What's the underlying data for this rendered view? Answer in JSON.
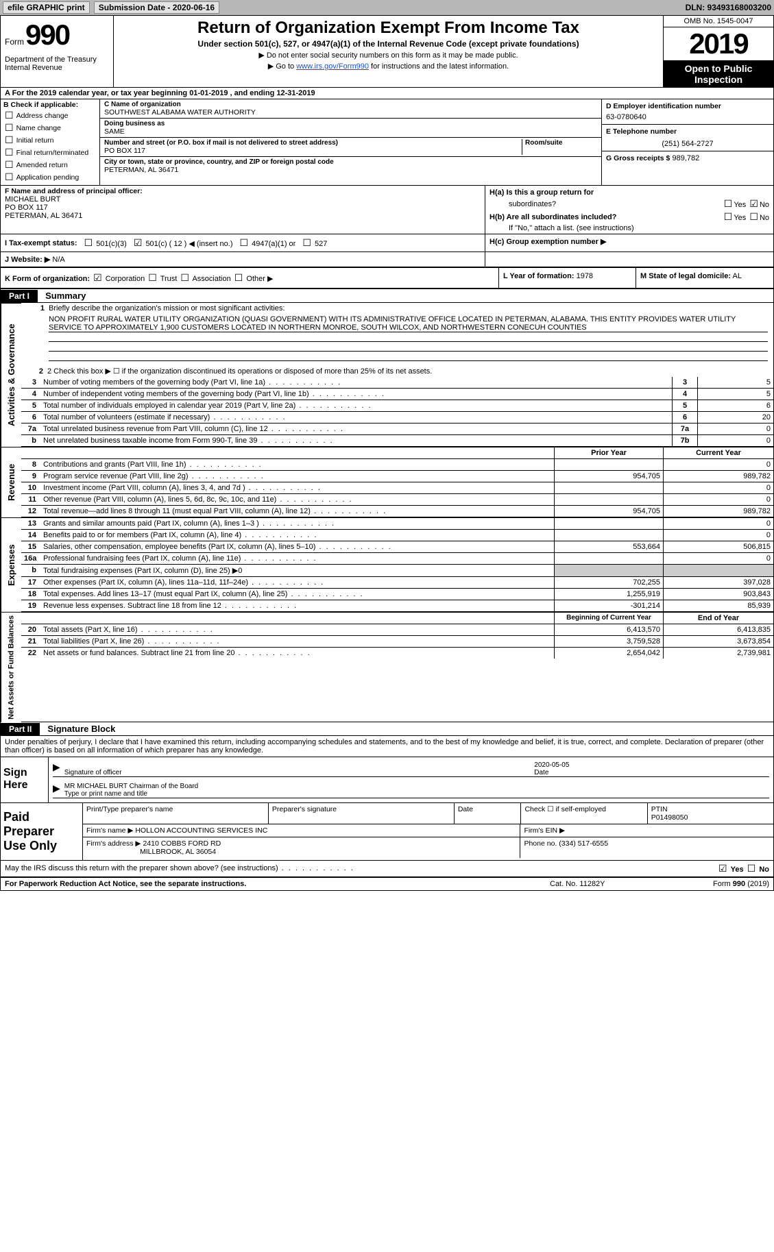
{
  "top": {
    "efile": "efile GRAPHIC print",
    "sub_label": "Submission Date - 2020-06-16",
    "dln": "DLN: 93493168003200"
  },
  "header": {
    "form_label": "Form",
    "form_number": "990",
    "dept": "Department of the Treasury\nInternal Revenue",
    "title": "Return of Organization Exempt From Income Tax",
    "subtitle": "Under section 501(c), 527, or 4947(a)(1) of the Internal Revenue Code (except private foundations)",
    "note1": "Do not enter social security numbers on this form as it may be made public.",
    "note2_pre": "Go to ",
    "note2_link": "www.irs.gov/Form990",
    "note2_post": " for instructions and the latest information.",
    "omb": "OMB No. 1545-0047",
    "year": "2019",
    "open": "Open to Public Inspection"
  },
  "row_a": "A For the 2019 calendar year, or tax year beginning 01-01-2019    , and ending 12-31-2019",
  "box_b": {
    "label": "B Check if applicable:",
    "opts": [
      "Address change",
      "Name change",
      "Initial return",
      "Final return/terminated",
      "Amended return",
      "Application pending"
    ]
  },
  "box_c": {
    "name_label": "C Name of organization",
    "name": "SOUTHWEST ALABAMA WATER AUTHORITY",
    "dba_label": "Doing business as",
    "dba": "SAME",
    "street_label": "Number and street (or P.O. box if mail is not delivered to street address)",
    "room_label": "Room/suite",
    "street": "PO BOX 117",
    "city_label": "City or town, state or province, country, and ZIP or foreign postal code",
    "city": "PETERMAN, AL  36471"
  },
  "box_d": {
    "label": "D Employer identification number",
    "value": "63-0780640"
  },
  "box_e": {
    "label": "E Telephone number",
    "value": "(251) 564-2727"
  },
  "box_g": {
    "label": "G Gross receipts $",
    "value": "989,782"
  },
  "box_f": {
    "label": "F  Name and address of principal officer:",
    "l1": "MICHAEL BURT",
    "l2": "PO BOX 117",
    "l3": "PETERMAN, AL  36471"
  },
  "box_h": {
    "a1": "H(a)  Is this a group return for",
    "a2": "subordinates?",
    "b1": "H(b)  Are all subordinates included?",
    "b2": "If \"No,\" attach a list. (see instructions)",
    "c": "H(c)  Group exemption number ▶",
    "yes": "Yes",
    "no": "No"
  },
  "row_i": {
    "label": "I  Tax-exempt status:",
    "o1": "501(c)(3)",
    "o2": "501(c) ( 12 ) ◀ (insert no.)",
    "o3": "4947(a)(1) or",
    "o4": "527"
  },
  "row_j": {
    "label": "J  Website: ▶",
    "value": "N/A"
  },
  "row_k": {
    "label": "K Form of organization:",
    "opts": [
      "Corporation",
      "Trust",
      "Association",
      "Other ▶"
    ],
    "l_label": "L Year of formation:",
    "l_val": "1978",
    "m_label": "M State of legal domicile:",
    "m_val": "AL"
  },
  "part1_label": "Part I",
  "part1_title": "Summary",
  "mission_label": "1  Briefly describe the organization's mission or most significant activities:",
  "mission": "NON PROFIT RURAL WATER UTILITY ORGANIZATION (QUASI GOVERNMENT) WITH ITS ADMINISTRATIVE OFFICE LOCATED IN PETERMAN, ALABAMA. THIS ENTITY PROVIDES WATER UTILITY SERVICE TO APPROXIMATELY 1,900 CUSTOMERS LOCATED IN NORTHERN MONROE, SOUTH WILCOX, AND NORTHWESTERN CONECUH COUNTIES",
  "line2": "2  Check this box ▶ ☐  if the organization discontinued its operations or disposed of more than 25% of its net assets.",
  "gov_lines": [
    {
      "n": "3",
      "d": "Number of voting members of the governing body (Part VI, line 1a)",
      "k": "3",
      "v": "5"
    },
    {
      "n": "4",
      "d": "Number of independent voting members of the governing body (Part VI, line 1b)",
      "k": "4",
      "v": "5"
    },
    {
      "n": "5",
      "d": "Total number of individuals employed in calendar year 2019 (Part V, line 2a)",
      "k": "5",
      "v": "6"
    },
    {
      "n": "6",
      "d": "Total number of volunteers (estimate if necessary)",
      "k": "6",
      "v": "20"
    },
    {
      "n": "7a",
      "d": "Total unrelated business revenue from Part VIII, column (C), line 12",
      "k": "7a",
      "v": "0"
    },
    {
      "n": "b",
      "d": "Net unrelated business taxable income from Form 990-T, line 39",
      "k": "7b",
      "v": "0"
    }
  ],
  "rev_hdr": {
    "py": "Prior Year",
    "cy": "Current Year"
  },
  "rev_lines": [
    {
      "n": "8",
      "d": "Contributions and grants (Part VIII, line 1h)",
      "py": "",
      "cy": "0"
    },
    {
      "n": "9",
      "d": "Program service revenue (Part VIII, line 2g)",
      "py": "954,705",
      "cy": "989,782"
    },
    {
      "n": "10",
      "d": "Investment income (Part VIII, column (A), lines 3, 4, and 7d )",
      "py": "",
      "cy": "0"
    },
    {
      "n": "11",
      "d": "Other revenue (Part VIII, column (A), lines 5, 6d, 8c, 9c, 10c, and 11e)",
      "py": "",
      "cy": "0"
    },
    {
      "n": "12",
      "d": "Total revenue—add lines 8 through 11 (must equal Part VIII, column (A), line 12)",
      "py": "954,705",
      "cy": "989,782"
    }
  ],
  "exp_lines": [
    {
      "n": "13",
      "d": "Grants and similar amounts paid (Part IX, column (A), lines 1–3 )",
      "py": "",
      "cy": "0"
    },
    {
      "n": "14",
      "d": "Benefits paid to or for members (Part IX, column (A), line 4)",
      "py": "",
      "cy": "0"
    },
    {
      "n": "15",
      "d": "Salaries, other compensation, employee benefits (Part IX, column (A), lines 5–10)",
      "py": "553,664",
      "cy": "506,815"
    },
    {
      "n": "16a",
      "d": "Professional fundraising fees (Part IX, column (A), line 11e)",
      "py": "",
      "cy": "0"
    },
    {
      "n": "b",
      "d": "Total fundraising expenses (Part IX, column (D), line 25) ▶0",
      "py": "shade",
      "cy": "shade"
    },
    {
      "n": "17",
      "d": "Other expenses (Part IX, column (A), lines 11a–11d, 11f–24e)",
      "py": "702,255",
      "cy": "397,028"
    },
    {
      "n": "18",
      "d": "Total expenses. Add lines 13–17 (must equal Part IX, column (A), line 25)",
      "py": "1,255,919",
      "cy": "903,843"
    },
    {
      "n": "19",
      "d": "Revenue less expenses. Subtract line 18 from line 12",
      "py": "-301,214",
      "cy": "85,939"
    }
  ],
  "na_hdr": {
    "py": "Beginning of Current Year",
    "cy": "End of Year"
  },
  "na_lines": [
    {
      "n": "20",
      "d": "Total assets (Part X, line 16)",
      "py": "6,413,570",
      "cy": "6,413,835"
    },
    {
      "n": "21",
      "d": "Total liabilities (Part X, line 26)",
      "py": "3,759,528",
      "cy": "3,673,854"
    },
    {
      "n": "22",
      "d": "Net assets or fund balances. Subtract line 21 from line 20",
      "py": "2,654,042",
      "cy": "2,739,981"
    }
  ],
  "vlabels": {
    "gov": "Activities & Governance",
    "rev": "Revenue",
    "exp": "Expenses",
    "na": "Net Assets or Fund Balances"
  },
  "part2_label": "Part II",
  "part2_title": "Signature Block",
  "sig_intro": "Under penalties of perjury, I declare that I have examined this return, including accompanying schedules and statements, and to the best of my knowledge and belief, it is true, correct, and complete. Declaration of preparer (other than officer) is based on all information of which preparer has any knowledge.",
  "sign_here": "Sign Here",
  "sig_officer_label": "Signature of officer",
  "sig_date_label": "Date",
  "sig_date": "2020-05-05",
  "sig_name": "MR MICHAEL BURT Chairman of the Board",
  "sig_name_label": "Type or print name and title",
  "paid_label": "Paid Preparer Use Only",
  "prep": {
    "h1": "Print/Type preparer's name",
    "h2": "Preparer's signature",
    "h3": "Date",
    "h4a": "Check ☐ if self-employed",
    "h4b": "PTIN",
    "ptin": "P01498050",
    "firm_name_l": "Firm's name    ▶",
    "firm_name": "HOLLON ACCOUNTING SERVICES INC",
    "firm_ein_l": "Firm's EIN ▶",
    "firm_addr_l": "Firm's address ▶",
    "firm_addr1": "2410 COBBS FORD RD",
    "firm_addr2": "MILLBROOK, AL  36054",
    "phone_l": "Phone no.",
    "phone": "(334) 517-6555"
  },
  "may_irs": "May the IRS discuss this return with the preparer shown above? (see instructions)",
  "footer": {
    "l": "For Paperwork Reduction Act Notice, see the separate instructions.",
    "m": "Cat. No. 11282Y",
    "r": "Form 990 (2019)"
  }
}
